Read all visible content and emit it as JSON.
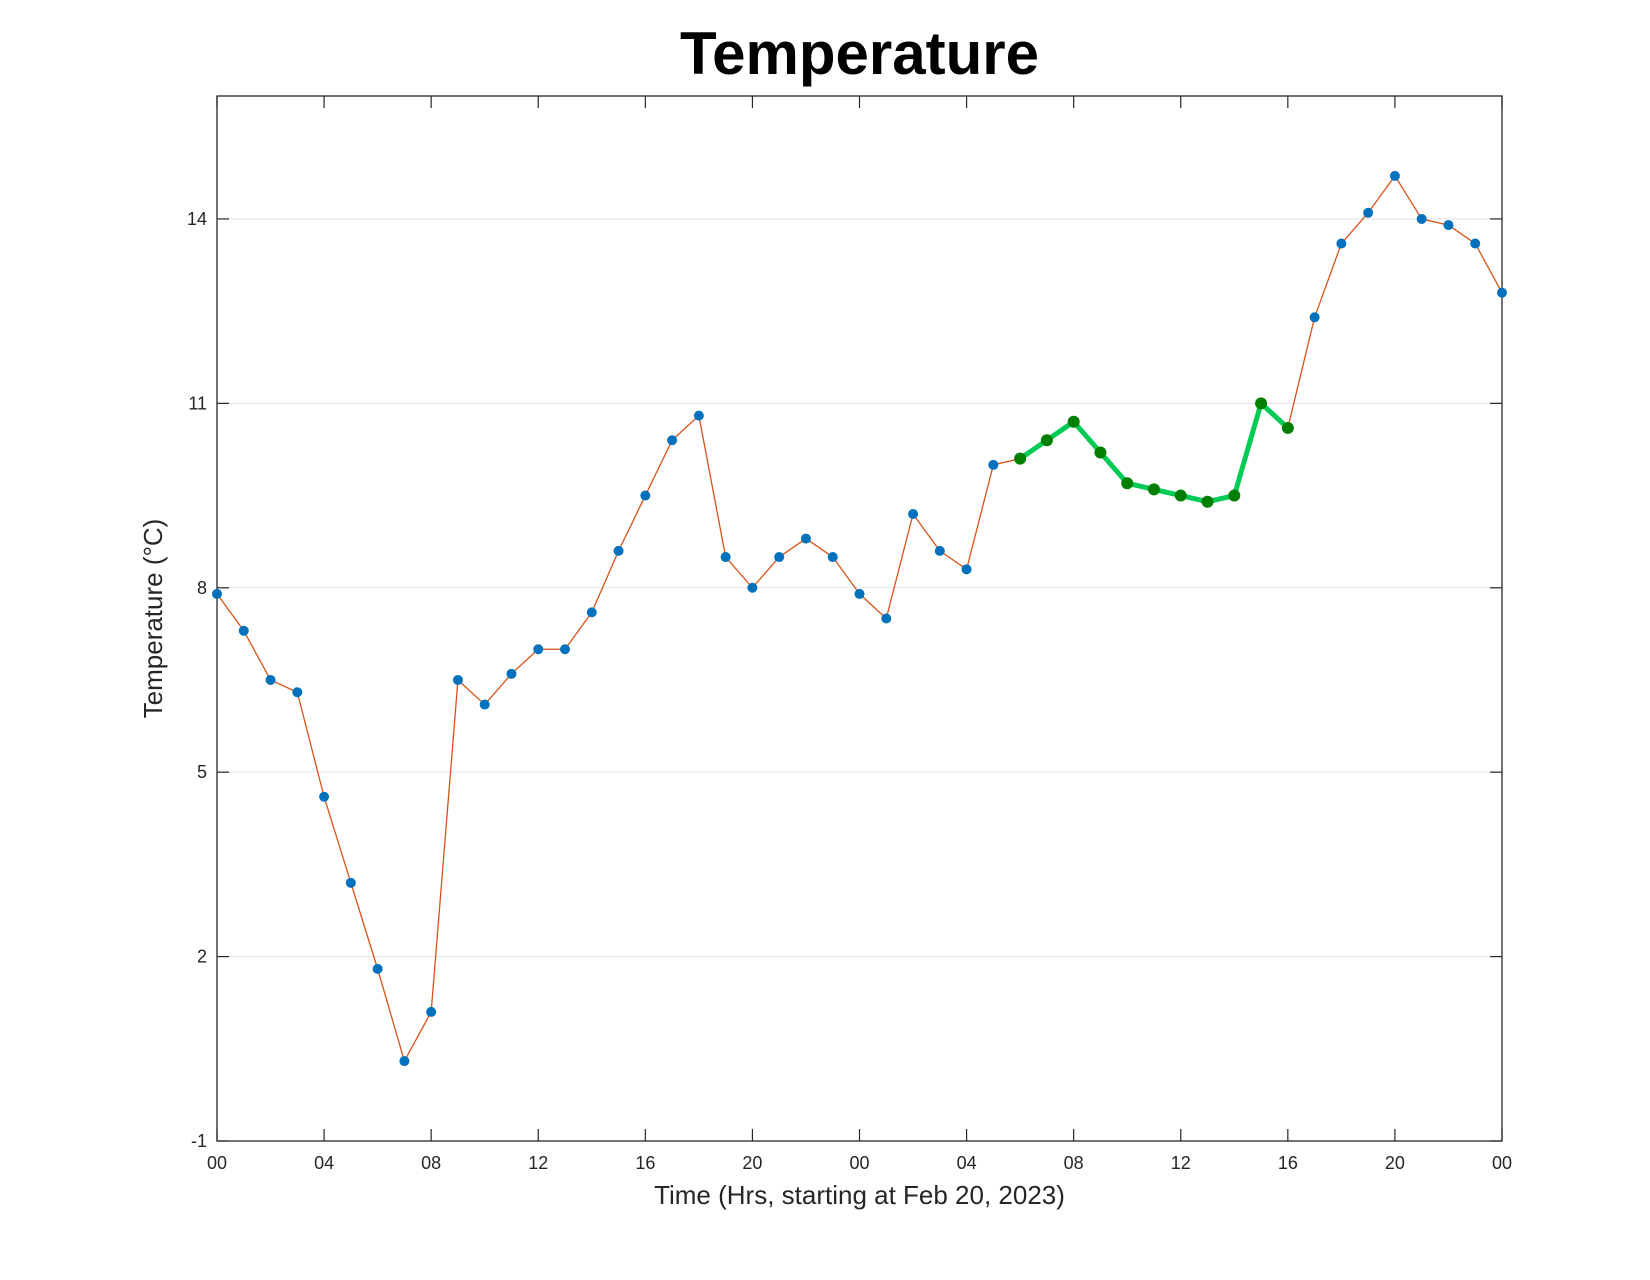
{
  "chart_data": {
    "type": "line",
    "title": "Temperature",
    "xlabel": "Time (Hrs, starting at Feb 20, 2023)",
    "ylabel": "Temperature (°C)",
    "x_start": "2023-02-20 00:00",
    "x_step_hours": 1,
    "xlim": [
      "2023-02-20 00:00",
      "2023-02-22 00:00"
    ],
    "ylim": [
      -1,
      16
    ],
    "x_tick_labels": [
      "00",
      "04",
      "08",
      "12",
      "16",
      "20",
      "00",
      "04",
      "08",
      "12",
      "16",
      "20",
      "00"
    ],
    "y_ticks": [
      -1,
      2,
      5,
      8,
      11,
      14
    ],
    "grid": "horizontal",
    "series": [
      {
        "color": "#D95319",
        "marker_color": "#0072BD",
        "x": [
          "2023-02-20 00:00",
          "2023-02-20 01:00",
          "2023-02-20 02:00",
          "2023-02-20 03:00",
          "2023-02-20 04:00",
          "2023-02-20 05:00",
          "2023-02-20 06:00",
          "2023-02-20 07:00",
          "2023-02-20 08:00",
          "2023-02-20 09:00",
          "2023-02-20 10:00",
          "2023-02-20 11:00",
          "2023-02-20 12:00",
          "2023-02-20 13:00",
          "2023-02-20 14:00",
          "2023-02-20 15:00",
          "2023-02-20 16:00",
          "2023-02-20 17:00",
          "2023-02-20 18:00",
          "2023-02-20 19:00",
          "2023-02-20 20:00",
          "2023-02-20 21:00",
          "2023-02-20 22:00",
          "2023-02-20 23:00",
          "2023-02-21 00:00",
          "2023-02-21 01:00",
          "2023-02-21 02:00",
          "2023-02-21 03:00",
          "2023-02-21 04:00",
          "2023-02-21 05:00",
          "2023-02-21 06:00",
          "2023-02-21 07:00",
          "2023-02-21 08:00",
          "2023-02-21 09:00",
          "2023-02-21 10:00",
          "2023-02-21 11:00",
          "2023-02-21 12:00",
          "2023-02-21 13:00",
          "2023-02-21 14:00",
          "2023-02-21 15:00",
          "2023-02-21 16:00",
          "2023-02-21 17:00",
          "2023-02-21 18:00",
          "2023-02-21 19:00",
          "2023-02-21 20:00",
          "2023-02-21 21:00",
          "2023-02-21 22:00",
          "2023-02-21 23:00",
          "2023-02-22 00:00"
        ],
        "values": [
          7.9,
          7.3,
          6.5,
          6.3,
          4.6,
          3.2,
          1.8,
          0.3,
          1.1,
          6.5,
          6.1,
          6.6,
          7.0,
          7.0,
          7.6,
          8.6,
          9.5,
          10.4,
          10.8,
          8.5,
          8.0,
          8.5,
          8.8,
          8.5,
          7.9,
          7.5,
          9.2,
          8.6,
          8.3,
          10.0,
          10.1,
          10.4,
          10.7,
          10.2,
          9.7,
          9.6,
          9.5,
          9.4,
          9.5,
          11.0,
          10.6,
          12.4,
          13.6,
          14.1,
          14.7,
          14.0,
          13.9,
          13.6,
          12.8
        ]
      },
      {
        "color": "#00CC55",
        "marker_color": "#007F00",
        "x": [
          "2023-02-21 06:00",
          "2023-02-21 07:00",
          "2023-02-21 08:00",
          "2023-02-21 09:00",
          "2023-02-21 10:00",
          "2023-02-21 11:00",
          "2023-02-21 12:00",
          "2023-02-21 13:00",
          "2023-02-21 14:00",
          "2023-02-21 15:00",
          "2023-02-21 16:00"
        ],
        "values": [
          10.1,
          10.4,
          10.7,
          10.2,
          9.7,
          9.6,
          9.5,
          9.4,
          9.5,
          11.0,
          10.6
        ]
      }
    ]
  }
}
